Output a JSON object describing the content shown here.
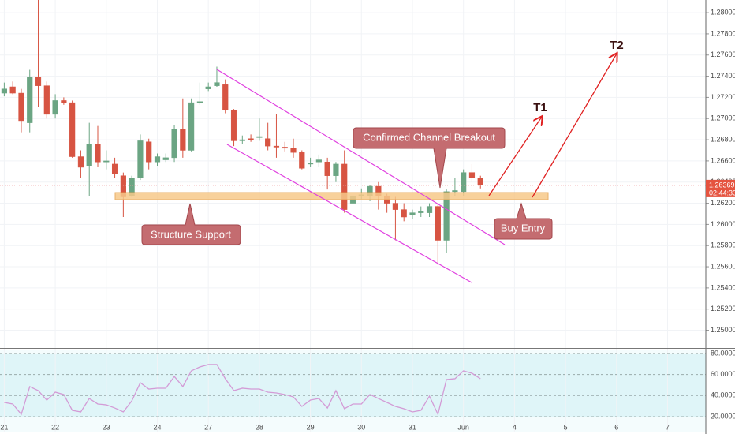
{
  "chart_data": [
    {
      "type": "candlestick",
      "up_color": "#6ba583",
      "down_color": "#d75442",
      "grid": true,
      "open": [
        1.2724,
        1.273,
        1.2724,
        1.2696,
        1.2739,
        1.2731,
        1.2704,
        1.2717,
        1.2715,
        1.2664,
        1.2655,
        1.2676,
        1.2659,
        1.2657,
        1.2646,
        1.2627,
        1.2644,
        1.2678,
        1.2659,
        1.2661,
        1.2663,
        1.269,
        1.267,
        1.2715,
        1.2728,
        1.2731,
        1.2732,
        1.2708,
        1.2679,
        1.2681,
        1.2682,
        1.2681,
        1.2674,
        1.2673,
        1.2672,
        1.2668,
        1.2657,
        1.2659,
        1.2659,
        1.2646,
        1.2657,
        1.262,
        1.2627,
        1.2627,
        1.2636,
        1.2627,
        1.262,
        1.2614,
        1.2609,
        1.2611,
        1.2611,
        1.2617,
        1.2585,
        1.2631,
        1.2631,
        1.2649,
        1.2644
      ],
      "high": [
        1.2734,
        1.2735,
        1.2728,
        1.2746,
        1.2812,
        1.2735,
        1.2723,
        1.272,
        1.2717,
        1.267,
        1.2696,
        1.2693,
        1.267,
        1.2663,
        1.2649,
        1.2646,
        1.2685,
        1.2681,
        1.2667,
        1.2667,
        1.2694,
        1.2719,
        1.2719,
        1.2734,
        1.2734,
        1.2749,
        1.2737,
        1.2709,
        1.2684,
        1.2685,
        1.27,
        1.2696,
        1.2704,
        1.2678,
        1.2681,
        1.267,
        1.2663,
        1.2666,
        1.2663,
        1.2659,
        1.267,
        1.2629,
        1.2634,
        1.2637,
        1.264,
        1.2629,
        1.2626,
        1.262,
        1.2614,
        1.2617,
        1.262,
        1.262,
        1.2633,
        1.2644,
        1.2652,
        1.2657,
        1.2646
      ],
      "low": [
        1.2721,
        1.2723,
        1.2687,
        1.2687,
        1.2711,
        1.27,
        1.27,
        1.2713,
        1.2663,
        1.2644,
        1.2627,
        1.2654,
        1.2652,
        1.2644,
        1.2607,
        1.2626,
        1.2642,
        1.2652,
        1.2655,
        1.2659,
        1.2659,
        1.2663,
        1.2669,
        1.2713,
        1.2726,
        1.273,
        1.2705,
        1.2674,
        1.2676,
        1.2678,
        1.2679,
        1.267,
        1.2663,
        1.2669,
        1.2663,
        1.2652,
        1.2654,
        1.2654,
        1.2633,
        1.264,
        1.2611,
        1.2616,
        1.2624,
        1.2622,
        1.2614,
        1.2611,
        1.2585,
        1.2603,
        1.2605,
        1.2607,
        1.2607,
        1.2562,
        1.2573,
        1.2627,
        1.2627,
        1.264,
        1.2634
      ],
      "close": [
        1.2728,
        1.2724,
        1.2698,
        1.2739,
        1.2731,
        1.2704,
        1.2717,
        1.2715,
        1.2664,
        1.2654,
        1.2676,
        1.2659,
        1.266,
        1.2648,
        1.2626,
        1.2644,
        1.2679,
        1.2659,
        1.2664,
        1.2663,
        1.269,
        1.267,
        1.2715,
        1.2716,
        1.273,
        1.2734,
        1.2708,
        1.2679,
        1.268,
        1.268,
        1.2683,
        1.2674,
        1.2673,
        1.2672,
        1.2668,
        1.2653,
        1.2658,
        1.2661,
        1.2646,
        1.2657,
        1.2614,
        1.2627,
        1.2628,
        1.2636,
        1.2627,
        1.262,
        1.2614,
        1.2607,
        1.2611,
        1.2612,
        1.2617,
        1.2585,
        1.2631,
        1.2632,
        1.2649,
        1.2644,
        1.2637
      ],
      "ylim": [
        1.2484,
        1.2812
      ],
      "yticks": [
        {
          "value": 1.25,
          "label": "1.25000"
        },
        {
          "value": 1.252,
          "label": "1.25200"
        },
        {
          "value": 1.254,
          "label": "1.25400"
        },
        {
          "value": 1.256,
          "label": "1.25600"
        },
        {
          "value": 1.258,
          "label": "1.25800"
        },
        {
          "value": 1.26,
          "label": "1.26000"
        },
        {
          "value": 1.262,
          "label": "1.26200"
        },
        {
          "value": 1.264,
          "label": "1.26400"
        },
        {
          "value": 1.266,
          "label": "1.26600"
        },
        {
          "value": 1.268,
          "label": "1.26800"
        },
        {
          "value": 1.27,
          "label": "1.27000"
        },
        {
          "value": 1.272,
          "label": "1.27200"
        },
        {
          "value": 1.274,
          "label": "1.27400"
        },
        {
          "value": 1.276,
          "label": "1.27600"
        },
        {
          "value": 1.278,
          "label": "1.27800"
        },
        {
          "value": 1.28,
          "label": "1.28000"
        }
      ],
      "xlim": [
        -0.5,
        82.5
      ],
      "xticks": [
        {
          "value": 0,
          "label": "21"
        },
        {
          "value": 6,
          "label": "22"
        },
        {
          "value": 12,
          "label": "23"
        },
        {
          "value": 18,
          "label": "24"
        },
        {
          "value": 24,
          "label": "27"
        },
        {
          "value": 30,
          "label": "28"
        },
        {
          "value": 36,
          "label": "29"
        },
        {
          "value": 42,
          "label": "30"
        },
        {
          "value": 48,
          "label": "31"
        },
        {
          "value": 54,
          "label": "Jun"
        },
        {
          "value": 60,
          "label": "4"
        },
        {
          "value": 66,
          "label": "5"
        },
        {
          "value": 72,
          "label": "6"
        },
        {
          "value": 78,
          "label": "7"
        }
      ],
      "last_price": {
        "value": 1.26369,
        "label": "1.26369"
      },
      "countdown": "02:44:33",
      "annotations": {
        "breakout": "Confirmed Channel Breakout",
        "support": "Structure Support",
        "entry": "Buy Entry",
        "t1": "T1",
        "t2": "T2"
      }
    },
    {
      "type": "line",
      "series": [
        {
          "color": "#d39bd6",
          "values": [
            33.5,
            32.0,
            22.2,
            48.5,
            44.7,
            35.7,
            43.2,
            41.0,
            26.0,
            24.5,
            37.2,
            32.0,
            31.2,
            28.2,
            24.5,
            35.0,
            52.2,
            46.2,
            47.0,
            47.0,
            58.2,
            48.5,
            63.5,
            67.2,
            69.5,
            69.5,
            56.0,
            44.7,
            47.0,
            46.2,
            46.2,
            43.2,
            42.5,
            41.0,
            38.7,
            29.7,
            35.7,
            37.2,
            28.2,
            44.7,
            27.5,
            32.0,
            32.0,
            41.0,
            37.2,
            33.5,
            29.7,
            27.5,
            24.5,
            26.0,
            39.5,
            22.2,
            55.2,
            56.0,
            63.5,
            61.2,
            56.0
          ]
        }
      ],
      "ylim": [
        5,
        83.7
      ],
      "yticks": [
        {
          "value": 20,
          "label": "20.0000"
        },
        {
          "value": 40,
          "label": "40.0000"
        },
        {
          "value": 60,
          "label": "60.0000"
        },
        {
          "value": 80,
          "label": "80.0000"
        }
      ]
    }
  ]
}
